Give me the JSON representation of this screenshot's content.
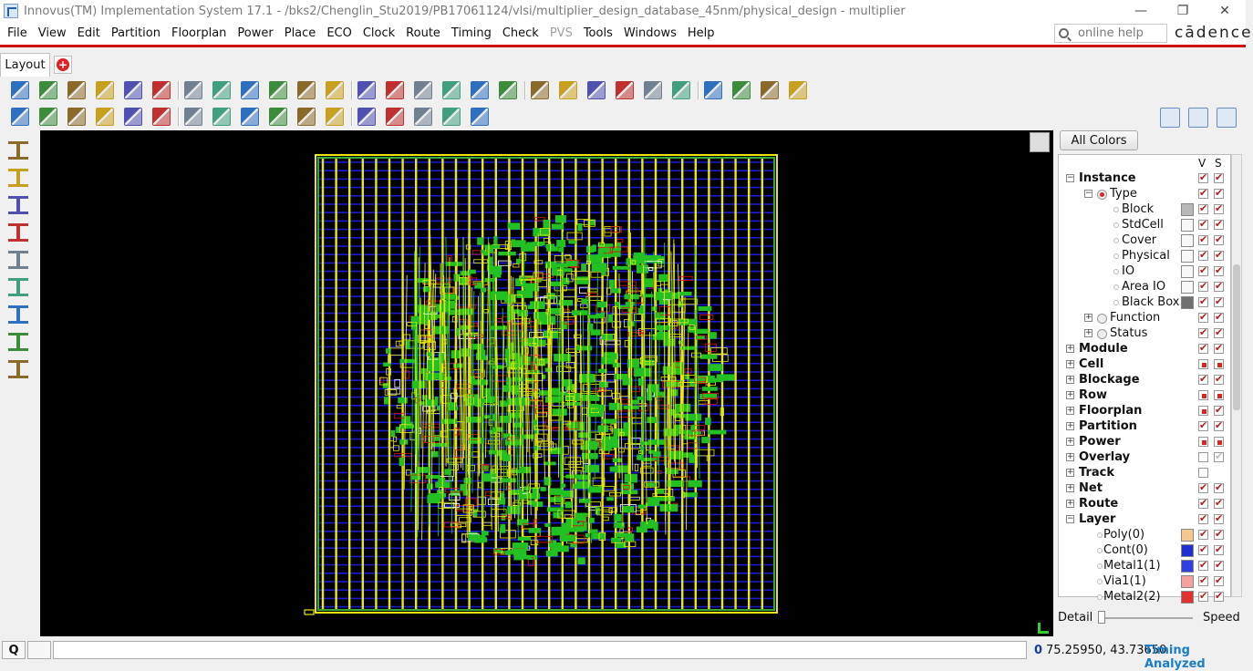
{
  "window": {
    "title": "Innovus(TM) Implementation System 17.1 - /bks2/Chenglin_Stu2019/PB17061124/vlsi/multiplier_design_database_45nm/physical_design - multiplier",
    "minimize": "—",
    "maximize": "❐",
    "close": "✕"
  },
  "menu": {
    "items": [
      "File",
      "View",
      "Edit",
      "Partition",
      "Floorplan",
      "Power",
      "Place",
      "ECO",
      "Clock",
      "Route",
      "Timing",
      "Check",
      "PVS",
      "Tools",
      "Windows",
      "Help"
    ],
    "disabled": [
      "PVS"
    ],
    "help_placeholder": "online help",
    "logo": "cādence"
  },
  "tabs": {
    "active": "Layout",
    "add": "+"
  },
  "toolbar1": {
    "icons": [
      "open-icon",
      "save-icon",
      "settings-icon",
      "save-design-icon",
      "undo-icon",
      "redo-icon",
      "select-arrow-icon",
      "highlight-icon",
      "dehighlight-icon",
      "clear-highlight-icon",
      "fit-icon",
      "zoom-in-icon",
      "zoom-out-icon",
      "zoom-area-icon",
      "zoom-previous-icon",
      "refresh-icon",
      "move-down-icon",
      "move-up-icon",
      "layout-view-icon",
      "hierarchy-icon",
      "violation-icon",
      "info-icon",
      "remove-icon",
      "ruler-icon",
      "warning-icon",
      "notes-icon",
      "report-icon",
      "run-icon"
    ]
  },
  "toolbar2": {
    "icons": [
      "select-icon",
      "snowflake-icon",
      "copy-icon",
      "wire-edit-icon",
      "place-instance-icon",
      "block-icon",
      "group-icon",
      "ungroup-icon",
      "eco-icon",
      "pin-icon",
      "select-area-icon",
      "resize-icon",
      "cut-icon",
      "align-icon",
      "move-icon",
      "flip-icon",
      "spread-icon"
    ],
    "right_icons": [
      "color-panel-icon",
      "people-icon",
      "panel-toggle-icon"
    ]
  },
  "left_toolbar": {
    "icons": [
      "wire-tool-icon",
      "crosshair-icon",
      "vertical-icon",
      "space-icon",
      "distribute-icon",
      "stretch-icon",
      "cut-wire-icon",
      "multi-select-icon",
      "shape-edit-icon"
    ]
  },
  "colors": {
    "die": "#e8e810",
    "blue_track": "#1a1ad8",
    "green_std": "#22c022",
    "red_pin": "#e01010",
    "canvas": "#000000"
  },
  "panel": {
    "all_colors": "All Colors",
    "col_v": "V",
    "col_s": "S",
    "rows": [
      {
        "label": "Instance",
        "bold": true,
        "indent": 0,
        "exp": "-",
        "v": "on",
        "s": "on"
      },
      {
        "label": "Type",
        "bold": false,
        "indent": 1,
        "exp": "-",
        "radio": "sel",
        "v": "on",
        "s": "on"
      },
      {
        "label": "Block",
        "bold": false,
        "indent": 2,
        "swatch": "#b8b8b8",
        "v": "on",
        "s": "on"
      },
      {
        "label": "StdCell",
        "bold": false,
        "indent": 2,
        "swatch": "#f8f8f8",
        "v": "on",
        "s": "on"
      },
      {
        "label": "Cover",
        "bold": false,
        "indent": 2,
        "swatch": "#f8f8f8",
        "v": "on",
        "s": "on"
      },
      {
        "label": "Physical",
        "bold": false,
        "indent": 2,
        "swatch": "#f8f8f8",
        "v": "on",
        "s": "on"
      },
      {
        "label": "IO",
        "bold": false,
        "indent": 2,
        "swatch": "#f8f8f8",
        "v": "on",
        "s": "on"
      },
      {
        "label": "Area IO",
        "bold": false,
        "indent": 2,
        "swatch": "#f8f8f8",
        "v": "on",
        "s": "on"
      },
      {
        "label": "Black Box",
        "bold": false,
        "indent": 2,
        "swatch": "#707070",
        "v": "on",
        "s": "on"
      },
      {
        "label": "Function",
        "bold": false,
        "indent": 1,
        "exp": "+",
        "radio": "off",
        "v": "on",
        "s": "on"
      },
      {
        "label": "Status",
        "bold": false,
        "indent": 1,
        "exp": "+",
        "radio": "off",
        "v": "on",
        "s": "on"
      },
      {
        "label": "Module",
        "bold": true,
        "indent": 0,
        "exp": "+",
        "v": "on",
        "s": "on"
      },
      {
        "label": "Cell",
        "bold": true,
        "indent": 0,
        "exp": "+",
        "v": "sq",
        "s": "sq"
      },
      {
        "label": "Blockage",
        "bold": true,
        "indent": 0,
        "exp": "+",
        "v": "on",
        "s": "on"
      },
      {
        "label": "Row",
        "bold": true,
        "indent": 0,
        "exp": "+",
        "v": "sq",
        "s": "sq"
      },
      {
        "label": "Floorplan",
        "bold": true,
        "indent": 0,
        "exp": "+",
        "v": "sq",
        "s": "on"
      },
      {
        "label": "Partition",
        "bold": true,
        "indent": 0,
        "exp": "+",
        "v": "on",
        "s": "on"
      },
      {
        "label": "Power",
        "bold": true,
        "indent": 0,
        "exp": "+",
        "v": "sq",
        "s": "sq"
      },
      {
        "label": "Overlay",
        "bold": true,
        "indent": 0,
        "exp": "+",
        "v": "off",
        "s": "grey"
      },
      {
        "label": "Track",
        "bold": true,
        "indent": 0,
        "exp": "+",
        "v": "off",
        "s": "none"
      },
      {
        "label": "Net",
        "bold": true,
        "indent": 0,
        "exp": "+",
        "v": "on",
        "s": "on"
      },
      {
        "label": "Route",
        "bold": true,
        "indent": 0,
        "exp": "+",
        "v": "on",
        "s": "on"
      },
      {
        "label": "Layer",
        "bold": true,
        "indent": 0,
        "exp": "-",
        "v": "on",
        "s": "on"
      },
      {
        "label": "Poly(0)",
        "bold": false,
        "indent": 3,
        "swatch": "#f4c890",
        "v": "on",
        "s": "on"
      },
      {
        "label": "Cont(0)",
        "bold": false,
        "indent": 3,
        "swatch": "#2030d0",
        "v": "on",
        "s": "on"
      },
      {
        "label": "Metal1(1)",
        "bold": false,
        "indent": 3,
        "swatch": "#3040e0",
        "v": "on",
        "s": "on"
      },
      {
        "label": "Via1(1)",
        "bold": false,
        "indent": 3,
        "swatch": "#f4a0a0",
        "v": "on",
        "s": "on"
      },
      {
        "label": "Metal2(2)",
        "bold": false,
        "indent": 3,
        "swatch": "#e03030",
        "v": "on",
        "s": "on"
      }
    ],
    "detail": "Detail",
    "speed": "Speed"
  },
  "status": {
    "q": "Q",
    "count": "0",
    "coords": "75.25950, 43.73650",
    "timing": "Timing Analyzed"
  }
}
